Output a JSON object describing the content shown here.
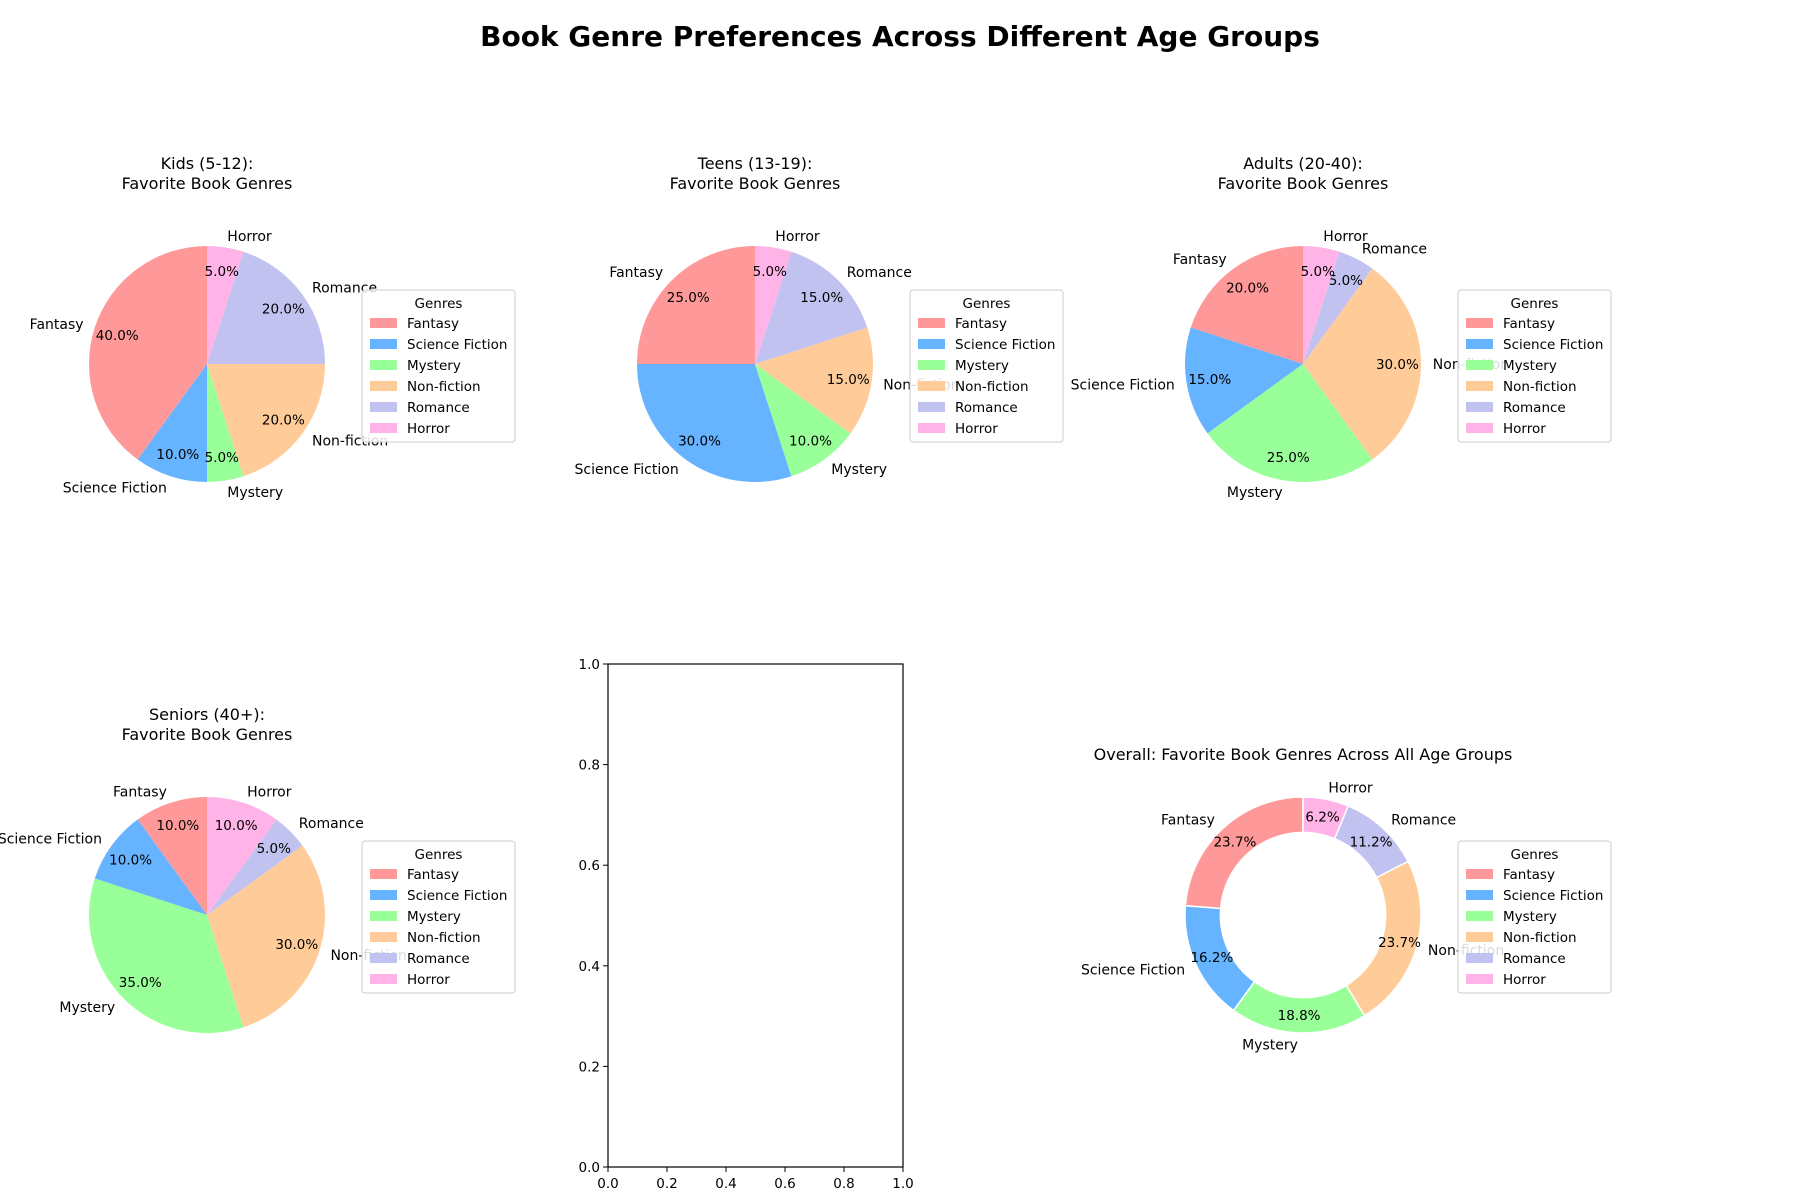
{
  "title": "Book Genre Preferences Across Different Age Groups",
  "legend_title": "Genres",
  "genres": [
    "Fantasy",
    "Science Fiction",
    "Mystery",
    "Non-fiction",
    "Romance",
    "Horror"
  ],
  "colors": [
    "#ff9999",
    "#66b3ff",
    "#99ff99",
    "#ffcc99",
    "#c2c2f0",
    "#ffb3e6"
  ],
  "chart_data": [
    {
      "type": "pie",
      "title": "Kids (5-12):\nFavorite Book Genres",
      "categories": [
        "Fantasy",
        "Science Fiction",
        "Mystery",
        "Non-fiction",
        "Romance",
        "Horror"
      ],
      "values": [
        40,
        10,
        5,
        20,
        20,
        5
      ],
      "pct_labels": [
        "40.0%",
        "10.0%",
        "5.0%",
        "20.0%",
        "20.0%",
        "5.0%"
      ],
      "legend": "right"
    },
    {
      "type": "pie",
      "title": "Teens (13-19):\nFavorite Book Genres",
      "categories": [
        "Fantasy",
        "Science Fiction",
        "Mystery",
        "Non-fiction",
        "Romance",
        "Horror"
      ],
      "values": [
        25,
        30,
        10,
        15,
        15,
        5
      ],
      "pct_labels": [
        "25.0%",
        "30.0%",
        "10.0%",
        "15.0%",
        "15.0%",
        "5.0%"
      ],
      "legend": "right"
    },
    {
      "type": "pie",
      "title": "Adults (20-40):\nFavorite Book Genres",
      "categories": [
        "Fantasy",
        "Science Fiction",
        "Mystery",
        "Non-fiction",
        "Romance",
        "Horror"
      ],
      "values": [
        20,
        15,
        25,
        30,
        5,
        5
      ],
      "pct_labels": [
        "20.0%",
        "15.0%",
        "25.0%",
        "30.0%",
        "5.0%",
        "5.0%"
      ],
      "legend": "right"
    },
    {
      "type": "pie",
      "title": "Seniors (40+):\nFavorite Book Genres",
      "categories": [
        "Fantasy",
        "Science Fiction",
        "Mystery",
        "Non-fiction",
        "Romance",
        "Horror"
      ],
      "values": [
        10,
        10,
        35,
        30,
        5,
        10
      ],
      "pct_labels": [
        "10.0%",
        "10.0%",
        "35.0%",
        "30.0%",
        "5.0%",
        "10.0%"
      ],
      "legend": "right"
    },
    {
      "type": "empty-axes",
      "xlim": [
        0,
        1
      ],
      "ylim": [
        0,
        1
      ],
      "xticks": [
        "0.0",
        "0.2",
        "0.4",
        "0.6",
        "0.8",
        "1.0"
      ],
      "yticks": [
        "0.0",
        "0.2",
        "0.4",
        "0.6",
        "0.8",
        "1.0"
      ]
    },
    {
      "type": "pie",
      "donut": true,
      "title": "Overall: Favorite Book Genres Across All Age Groups",
      "categories": [
        "Fantasy",
        "Science Fiction",
        "Mystery",
        "Non-fiction",
        "Romance",
        "Horror"
      ],
      "values": [
        23.75,
        16.25,
        18.75,
        23.75,
        11.25,
        6.25
      ],
      "pct_labels": [
        "23.7%",
        "16.2%",
        "18.8%",
        "23.7%",
        "11.2%",
        "6.2%"
      ],
      "legend": "right"
    }
  ]
}
